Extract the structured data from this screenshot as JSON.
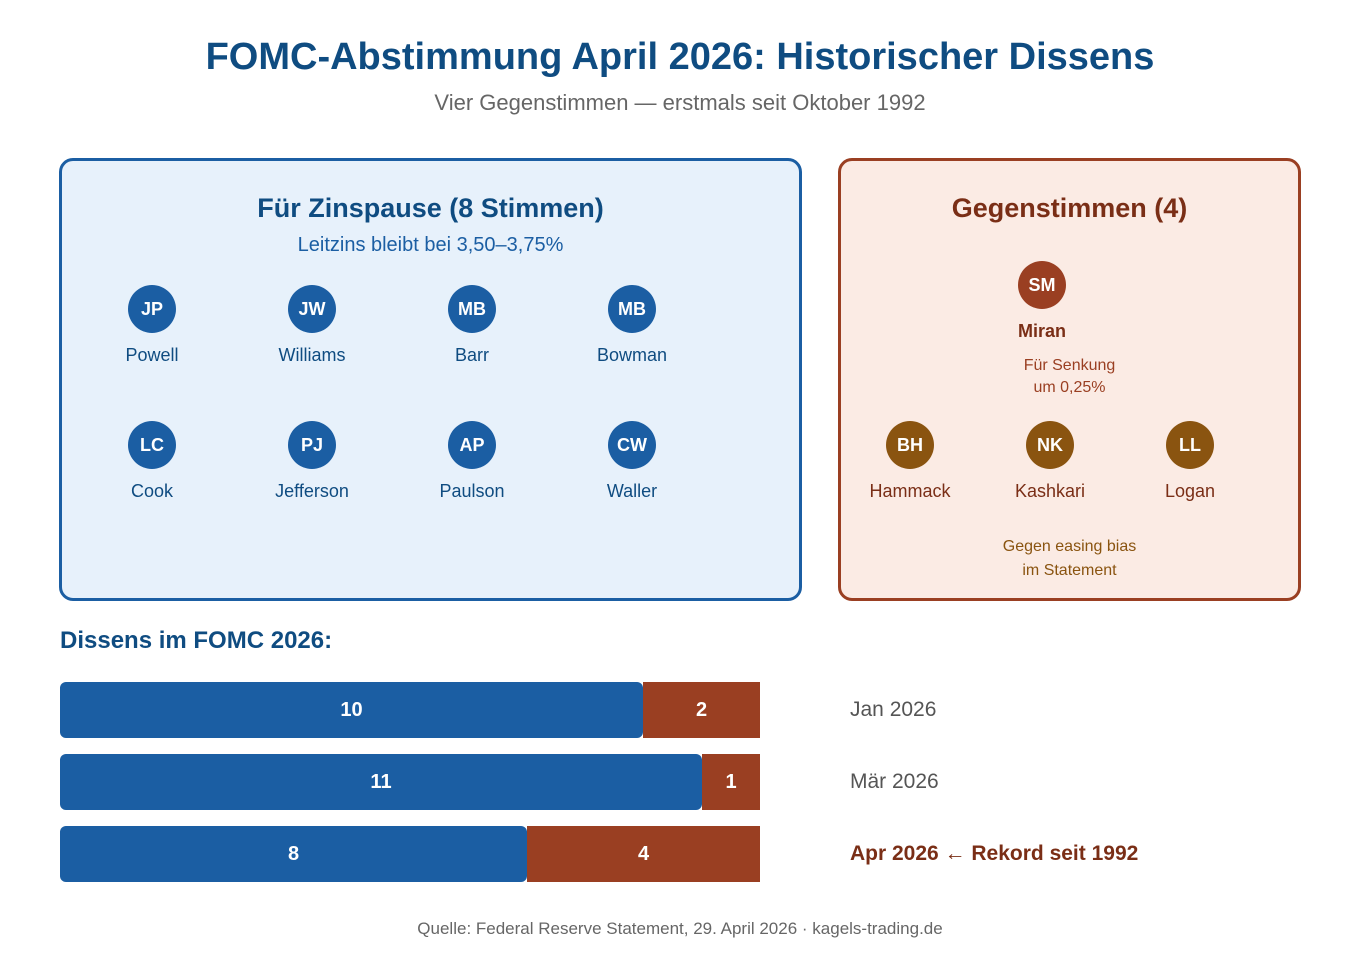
{
  "title": "FOMC-Abstimmung April 2026: Historischer Dissens",
  "subtitle": "Vier Gegenstimmen — erstmals seit Oktober 1992",
  "panel_for": {
    "title": "Für Zinspause (8 Stimmen)",
    "subtitle": "Leitzins bleibt bei 3,50–3,75%",
    "members": [
      {
        "initials": "JP",
        "name": "Powell"
      },
      {
        "initials": "JW",
        "name": "Williams"
      },
      {
        "initials": "MB",
        "name": "Barr"
      },
      {
        "initials": "MB",
        "name": "Bowman"
      },
      {
        "initials": "LC",
        "name": "Cook"
      },
      {
        "initials": "PJ",
        "name": "Jefferson"
      },
      {
        "initials": "AP",
        "name": "Paulson"
      },
      {
        "initials": "CW",
        "name": "Waller"
      }
    ]
  },
  "panel_against": {
    "title": "Gegenstimmen (4)",
    "miran": {
      "initials": "SM",
      "name": "Miran",
      "note_line1": "Für Senkung",
      "note_line2": "um 0,25%"
    },
    "others": [
      {
        "initials": "BH",
        "name": "Hammack"
      },
      {
        "initials": "NK",
        "name": "Kashkari"
      },
      {
        "initials": "LL",
        "name": "Logan"
      }
    ],
    "note_line1": "Gegen easing bias",
    "note_line2": "im Statement"
  },
  "section_title": "Dissens im FOMC 2026:",
  "chart_data": {
    "type": "bar",
    "stacked": true,
    "orientation": "horizontal",
    "categories": [
      "Jan 2026",
      "Mär 2026",
      "Apr 2026"
    ],
    "series": [
      {
        "values": [
          10,
          11,
          8
        ],
        "color": "#1b5ea3"
      },
      {
        "values": [
          2,
          1,
          4
        ],
        "color": "#9a3f22"
      }
    ],
    "highlight_label": "Apr 2026 ← Rekord seit 1992"
  },
  "footer": "Quelle: Federal Reserve Statement, 29. April 2026 · kagels-trading.de",
  "colors": {
    "for": "#1b5ea3",
    "against": "#9a3f22",
    "against_bias": "#8a5410",
    "title": "#0f4c81"
  }
}
